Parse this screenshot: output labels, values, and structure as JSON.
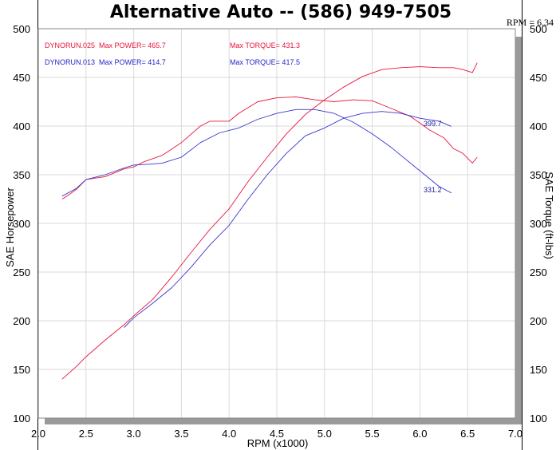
{
  "header": {
    "title": "Alternative Auto -- (586) 949-7505",
    "rpm_readout": "RPM = 6.34"
  },
  "legend": [
    {
      "run": "DYNORUN.025",
      "power": "Max POWER= 465.7",
      "torque": "Max TORQUE= 431.3",
      "color": "#e8143c"
    },
    {
      "run": "DYNORUN.013",
      "power": "Max POWER= 414.7",
      "torque": "Max TORQUE= 417.5",
      "color": "#2323c8"
    }
  ],
  "annotations": {
    "hp_end": "399.7",
    "tq_end": "331.2"
  },
  "colors": {
    "run025": "#e8143c",
    "run013": "#3535d0",
    "grid": "#dadada",
    "frame": "#888888"
  },
  "chart_data": {
    "type": "line",
    "xlabel": "RPM (x1000)",
    "ylabel_left": "SAE Horsepower",
    "ylabel_right": "SAE Torque (ft-lbs)",
    "xlim": [
      2.0,
      7.0
    ],
    "ylim": [
      100,
      500
    ],
    "x_ticks": [
      "2.0",
      "2.5",
      "3.0",
      "3.5",
      "4.0",
      "4.5",
      "5.0",
      "5.5",
      "6.0",
      "6.5",
      "7.0"
    ],
    "y_ticks": [
      "100",
      "150",
      "200",
      "250",
      "300",
      "350",
      "400",
      "450",
      "500"
    ],
    "grid": true,
    "series": [
      {
        "name": "DYNORUN.025",
        "color": "#e8143c",
        "x": [
          2.25,
          2.4,
          2.5,
          2.7,
          2.9,
          3.0,
          3.2,
          3.4,
          3.6,
          3.8,
          4.0,
          4.2,
          4.4,
          4.6,
          4.8,
          5.0,
          5.2,
          5.4,
          5.6,
          5.8,
          6.0,
          6.2,
          6.35,
          6.45,
          6.55,
          6.6
        ],
        "y": [
          140,
          153,
          163,
          180,
          196,
          205,
          222,
          245,
          270,
          294,
          315,
          343,
          368,
          392,
          412,
          427,
          440,
          451,
          458,
          460,
          461,
          460,
          460,
          458,
          455,
          465
        ]
      },
      {
        "name": "DYNORUN.025",
        "color": "#e8143c",
        "x": [
          2.25,
          2.3,
          2.4,
          2.5,
          2.7,
          2.9,
          3.0,
          3.1,
          3.3,
          3.5,
          3.7,
          3.8,
          4.0,
          4.1,
          4.3,
          4.5,
          4.7,
          4.9,
          5.1,
          5.3,
          5.5,
          5.7,
          5.9,
          6.1,
          6.25,
          6.35,
          6.45,
          6.55,
          6.6
        ],
        "y": [
          325,
          328,
          335,
          345,
          348,
          356,
          358,
          363,
          370,
          383,
          400,
          405,
          405,
          413,
          425,
          429,
          430,
          427,
          425,
          427,
          426,
          418,
          410,
          396,
          388,
          377,
          372,
          362,
          368
        ]
      },
      {
        "name": "DYNORUN.013",
        "color": "#3535d0",
        "x": [
          2.9,
          3.0,
          3.2,
          3.4,
          3.6,
          3.8,
          4.0,
          4.2,
          4.4,
          4.6,
          4.8,
          5.0,
          5.2,
          5.4,
          5.6,
          5.8,
          6.0,
          6.2,
          6.33
        ],
        "y": [
          193,
          203,
          218,
          234,
          255,
          278,
          298,
          325,
          350,
          372,
          390,
          398,
          408,
          413,
          415,
          413,
          408,
          405,
          399.7
        ]
      },
      {
        "name": "DYNORUN.013",
        "color": "#3535d0",
        "x": [
          2.25,
          2.4,
          2.5,
          2.7,
          2.9,
          3.0,
          3.2,
          3.3,
          3.5,
          3.7,
          3.9,
          4.1,
          4.3,
          4.5,
          4.7,
          4.9,
          5.1,
          5.3,
          5.5,
          5.7,
          5.9,
          6.1,
          6.2,
          6.33
        ],
        "y": [
          328,
          336,
          345,
          350,
          357,
          360,
          361,
          362,
          368,
          383,
          393,
          398,
          407,
          413,
          417,
          417,
          413,
          404,
          392,
          378,
          362,
          346,
          338,
          331.2
        ]
      }
    ]
  }
}
